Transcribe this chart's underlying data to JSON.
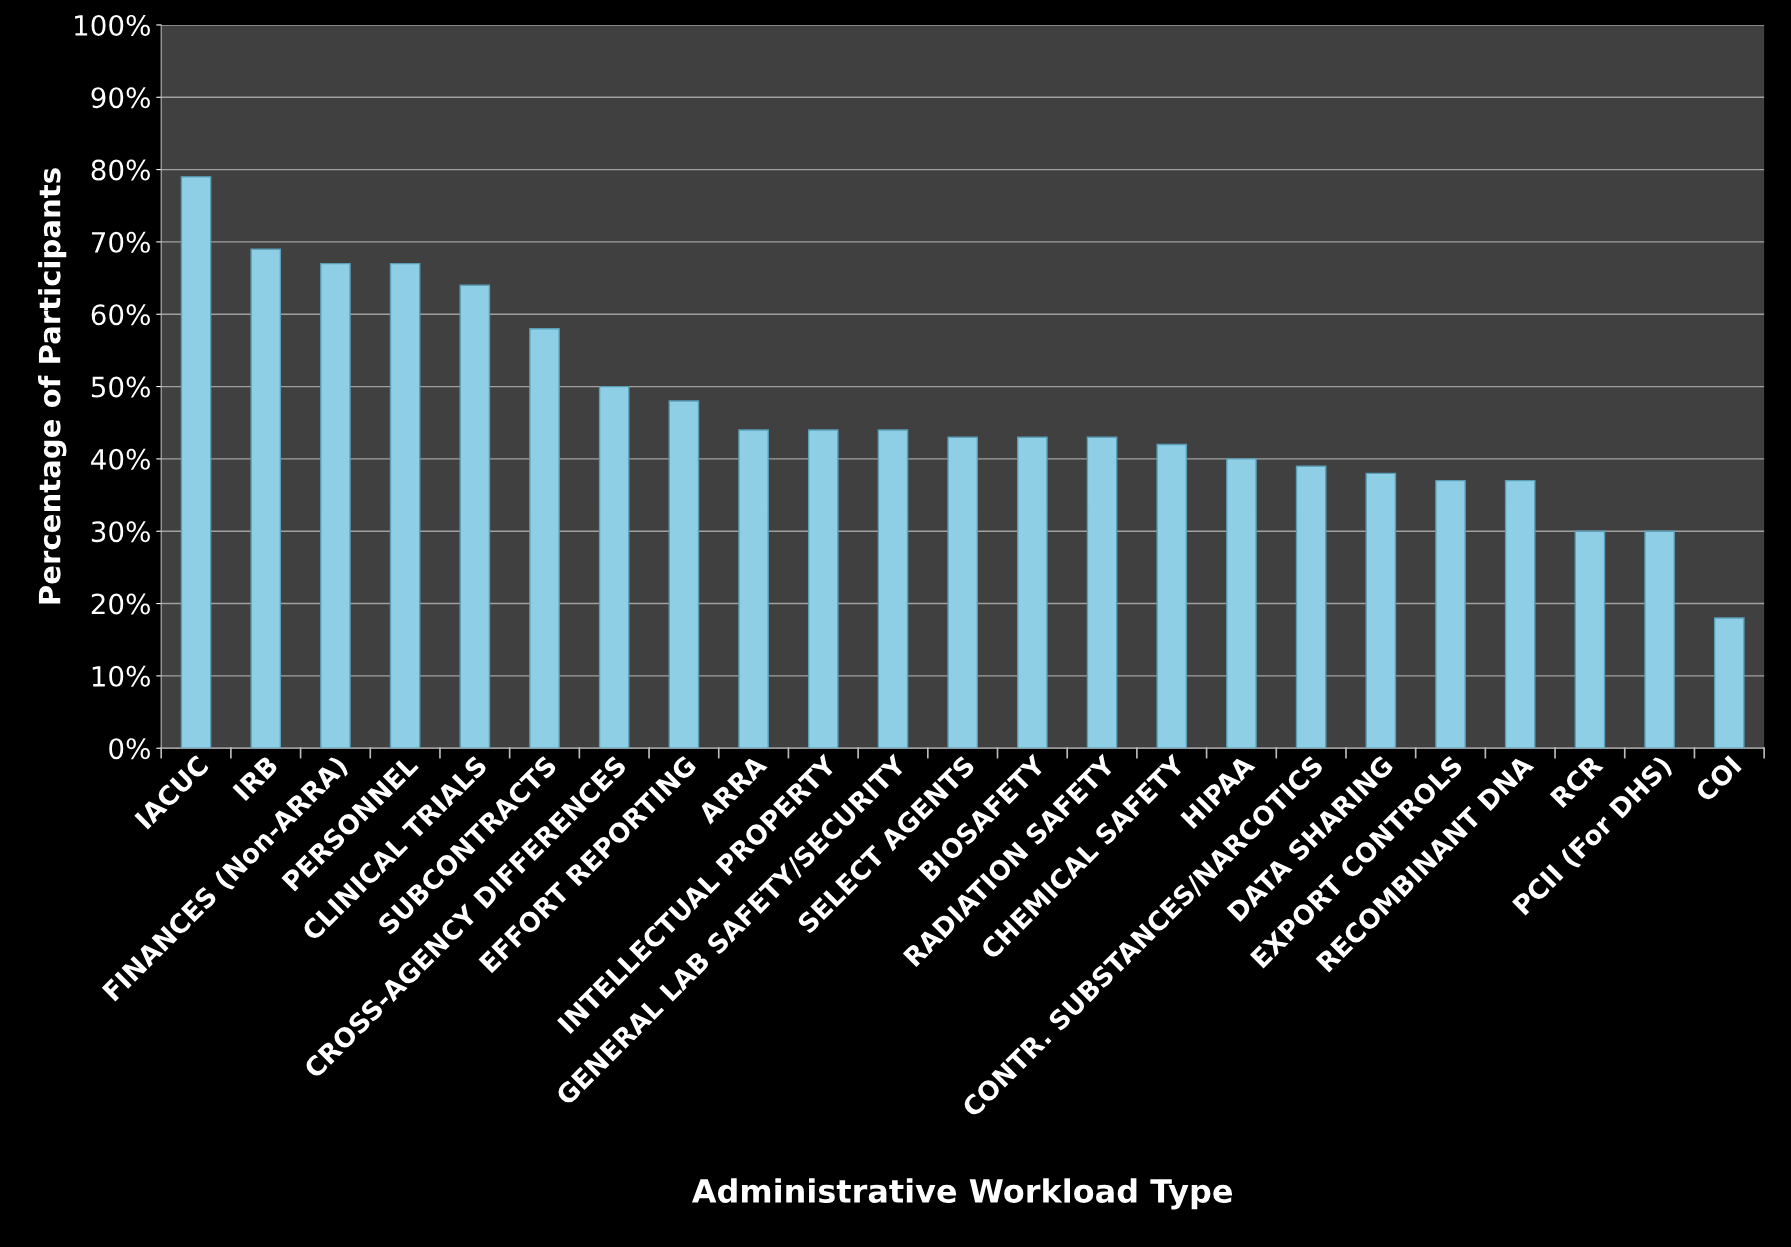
{
  "chart_data": {
    "type": "bar",
    "xlabel": "Administrative Workload Type",
    "ylabel": "Percentage of Participants",
    "categories": [
      "IACUC",
      "IRB",
      "FINANCES (Non-ARRA)",
      "PERSONNEL",
      "CLINICAL TRIALS",
      "SUBCONTRACTS",
      "CROSS-AGENCY DIFFERENCES",
      "EFFORT REPORTING",
      "ARRA",
      "INTELLECTUAL PROPERTY",
      "GENERAL LAB SAFETY/SECURITY",
      "SELECT AGENTS",
      "BIOSAFETY",
      "RADIATION SAFETY",
      "CHEMICAL SAFETY",
      "HIPAA",
      "CONTR. SUBSTANCES/NARCOTICS",
      "DATA SHARING",
      "EXPORT CONTROLS",
      "RECOMBINANT DNA",
      "RCR",
      "PCII (For DHS)",
      "COI"
    ],
    "values": [
      79,
      69,
      67,
      67,
      64,
      58,
      50,
      48,
      44,
      44,
      44,
      43,
      43,
      43,
      42,
      40,
      39,
      38,
      37,
      37,
      30,
      30,
      18
    ],
    "color": "#8ecfe6",
    "ylim": [
      0,
      100
    ],
    "yticks": [
      {
        "value": 0,
        "label": "0%"
      },
      {
        "value": 10,
        "label": "10%"
      },
      {
        "value": 20,
        "label": "20%"
      },
      {
        "value": 30,
        "label": "30%"
      },
      {
        "value": 40,
        "label": "40%"
      },
      {
        "value": 50,
        "label": "50%"
      },
      {
        "value": 60,
        "label": "60%"
      },
      {
        "value": 70,
        "label": "70%"
      },
      {
        "value": 80,
        "label": "80%"
      },
      {
        "value": 90,
        "label": "90%"
      },
      {
        "value": 100,
        "label": "100%"
      }
    ],
    "grid": "y"
  }
}
